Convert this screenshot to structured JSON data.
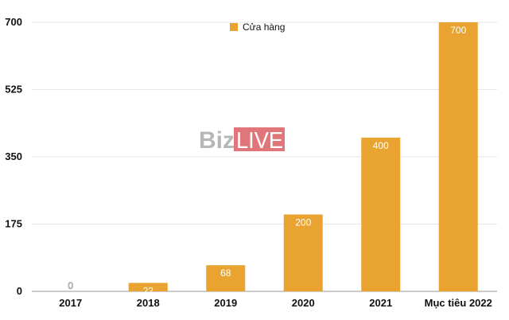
{
  "watermark": {
    "left": "Biz",
    "right": "LIVE",
    "right_bg": "#e0767a"
  },
  "chart_data": {
    "type": "bar",
    "categories": [
      "2017",
      "2018",
      "2019",
      "2020",
      "2021",
      "Mục tiêu 2022"
    ],
    "series": [
      {
        "name": "Cửa hàng",
        "values": [
          0,
          22,
          68,
          200,
          400,
          700
        ],
        "color": "#e8a331"
      }
    ],
    "data_labels": [
      "0",
      "22",
      "68",
      "200",
      "400",
      "700"
    ],
    "y_ticks": [
      "0",
      "175",
      "350",
      "525",
      "700"
    ],
    "ylim": [
      0,
      700
    ],
    "grid": true,
    "legend": "top-center",
    "title": "",
    "xlabel": "",
    "ylabel": ""
  }
}
